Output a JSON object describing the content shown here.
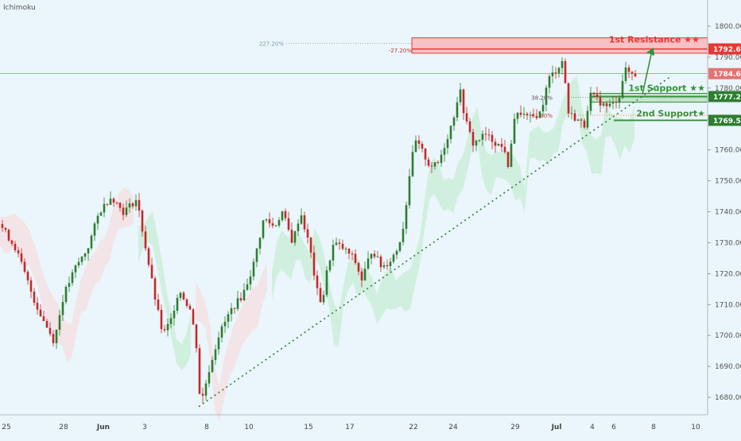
{
  "indicator_label": "Ichimoku",
  "colors": {
    "background": "#eaf6fb",
    "up_candle": "#2e7d32",
    "down_candle": "#c62828",
    "trendline": "#2e7d32",
    "resistance": "#e53935",
    "support": "#388e3c",
    "cloud_bull": "#c8ecd6",
    "cloud_bear": "#f6dde0",
    "price_line": "#e57373"
  },
  "chart_data": {
    "type": "candlestick",
    "symbol_indicator": "Ichimoku",
    "ylim": [
      1673,
      1817
    ],
    "y_ticks": [
      "1680.00",
      "1690.00",
      "1700.00",
      "1710.00",
      "1720.00",
      "1730.00",
      "1740.00",
      "1750.00",
      "1760.00",
      "1770.00",
      "1780.00",
      "1790.00",
      "1800.00"
    ],
    "x_ticks": [
      "25",
      "28",
      "Jun",
      "3",
      "8",
      "10",
      "15",
      "17",
      "22",
      "24",
      "29",
      "Jul",
      "4",
      "6",
      "8",
      "10"
    ],
    "grid": false,
    "path_points": [
      [
        0,
        1736
      ],
      [
        20,
        1728
      ],
      [
        45,
        1710
      ],
      [
        68,
        1698
      ],
      [
        80,
        1713
      ],
      [
        95,
        1722
      ],
      [
        110,
        1728
      ],
      [
        125,
        1740
      ],
      [
        140,
        1745
      ],
      [
        155,
        1740
      ],
      [
        172,
        1744
      ],
      [
        182,
        1730
      ],
      [
        195,
        1712
      ],
      [
        205,
        1700
      ],
      [
        215,
        1705
      ],
      [
        225,
        1715
      ],
      [
        240,
        1708
      ],
      [
        248,
        1695
      ],
      [
        252,
        1677
      ],
      [
        262,
        1688
      ],
      [
        275,
        1700
      ],
      [
        290,
        1708
      ],
      [
        305,
        1713
      ],
      [
        318,
        1722
      ],
      [
        332,
        1738
      ],
      [
        345,
        1735
      ],
      [
        355,
        1740
      ],
      [
        368,
        1730
      ],
      [
        378,
        1740
      ],
      [
        390,
        1728
      ],
      [
        398,
        1715
      ],
      [
        405,
        1710
      ],
      [
        412,
        1722
      ],
      [
        420,
        1730
      ],
      [
        432,
        1728
      ],
      [
        445,
        1725
      ],
      [
        455,
        1718
      ],
      [
        468,
        1728
      ],
      [
        480,
        1722
      ],
      [
        490,
        1724
      ],
      [
        500,
        1728
      ],
      [
        508,
        1736
      ],
      [
        515,
        1752
      ],
      [
        522,
        1763
      ],
      [
        530,
        1760
      ],
      [
        540,
        1755
      ],
      [
        550,
        1755
      ],
      [
        560,
        1762
      ],
      [
        570,
        1770
      ],
      [
        578,
        1780
      ],
      [
        585,
        1770
      ],
      [
        595,
        1762
      ],
      [
        610,
        1765
      ],
      [
        625,
        1762
      ],
      [
        635,
        1760
      ],
      [
        640,
        1752
      ],
      [
        645,
        1770
      ],
      [
        655,
        1772
      ],
      [
        665,
        1770
      ],
      [
        680,
        1772
      ],
      [
        690,
        1783
      ],
      [
        700,
        1786
      ],
      [
        708,
        1789
      ],
      [
        715,
        1772
      ],
      [
        725,
        1770
      ],
      [
        735,
        1768
      ],
      [
        742,
        1778
      ],
      [
        752,
        1776
      ],
      [
        762,
        1774
      ],
      [
        772,
        1775
      ],
      [
        780,
        1778
      ],
      [
        785,
        1786
      ],
      [
        792,
        1785
      ],
      [
        802,
        1784
      ]
    ],
    "ichimoku_cloud_bullish_span": [
      [
        170,
        245
      ],
      [
        340,
        800
      ]
    ],
    "ichimoku_cloud_bearish_span": [
      [
        50,
        170
      ],
      [
        245,
        340
      ]
    ],
    "trendline": {
      "from": [
        "8 Jun",
        1677
      ],
      "to": [
        "~8 Jul",
        1783
      ]
    },
    "levels": [
      {
        "name": "1st Resistance ★★",
        "value": 1792.66,
        "label": "1792.66"
      },
      {
        "name": "last_price",
        "value": 1784.67,
        "label": "1784.67"
      },
      {
        "name": "1st Support ★★",
        "value": 1777.26,
        "label": "1777.26"
      },
      {
        "name": "2nd Support★",
        "value": 1769.57,
        "label": "1769.57"
      }
    ],
    "fibonacci": [
      {
        "label": "227.20%",
        "value": 1794.5
      },
      {
        "label": "-27.20%",
        "value": 1792.3
      },
      {
        "label": "38.20%",
        "value": 1777.0
      },
      {
        "label": "61.80%",
        "value": 1771.2
      }
    ],
    "annotations": [
      "1st Resistance ★★",
      "1st Support ★★",
      "2nd Support★"
    ]
  }
}
